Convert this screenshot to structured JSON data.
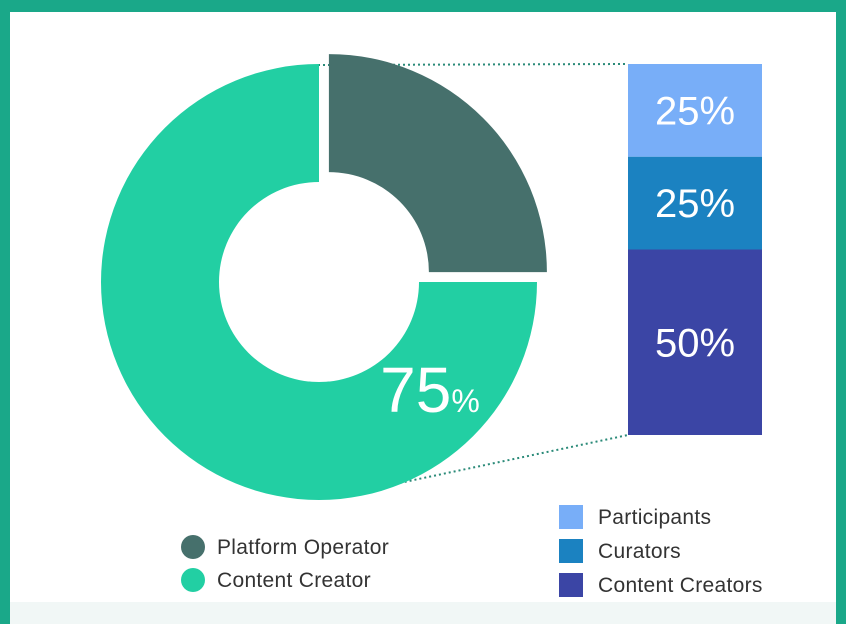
{
  "chart_data": [
    {
      "type": "pie",
      "variant": "donut",
      "slices": [
        {
          "label": "Platform Operator",
          "value": 25,
          "value_text": "25",
          "unit": "%",
          "color": "#46706c",
          "exploded": true
        },
        {
          "label": "Content Creator",
          "value": 75,
          "value_text": "75",
          "unit": "%",
          "color": "#22cfa3",
          "exploded": false
        }
      ],
      "legend": {
        "position": "bottom-left",
        "marker": "circle"
      }
    },
    {
      "type": "bar",
      "variant": "stacked-100",
      "breakdown_of": "Content Creator",
      "segments": [
        {
          "label": "Participants",
          "value": 25,
          "value_text": "25%",
          "color": "#78aef8"
        },
        {
          "label": "Curators",
          "value": 25,
          "value_text": "25%",
          "color": "#1b82c1"
        },
        {
          "label": "Content Creators",
          "value": 50,
          "value_text": "50%",
          "color": "#3b45a5"
        }
      ],
      "legend": {
        "position": "bottom-right",
        "marker": "square"
      }
    }
  ],
  "colors": {
    "border": "#1aa889",
    "background": "#ffffff",
    "connector": "#2a8a78"
  }
}
